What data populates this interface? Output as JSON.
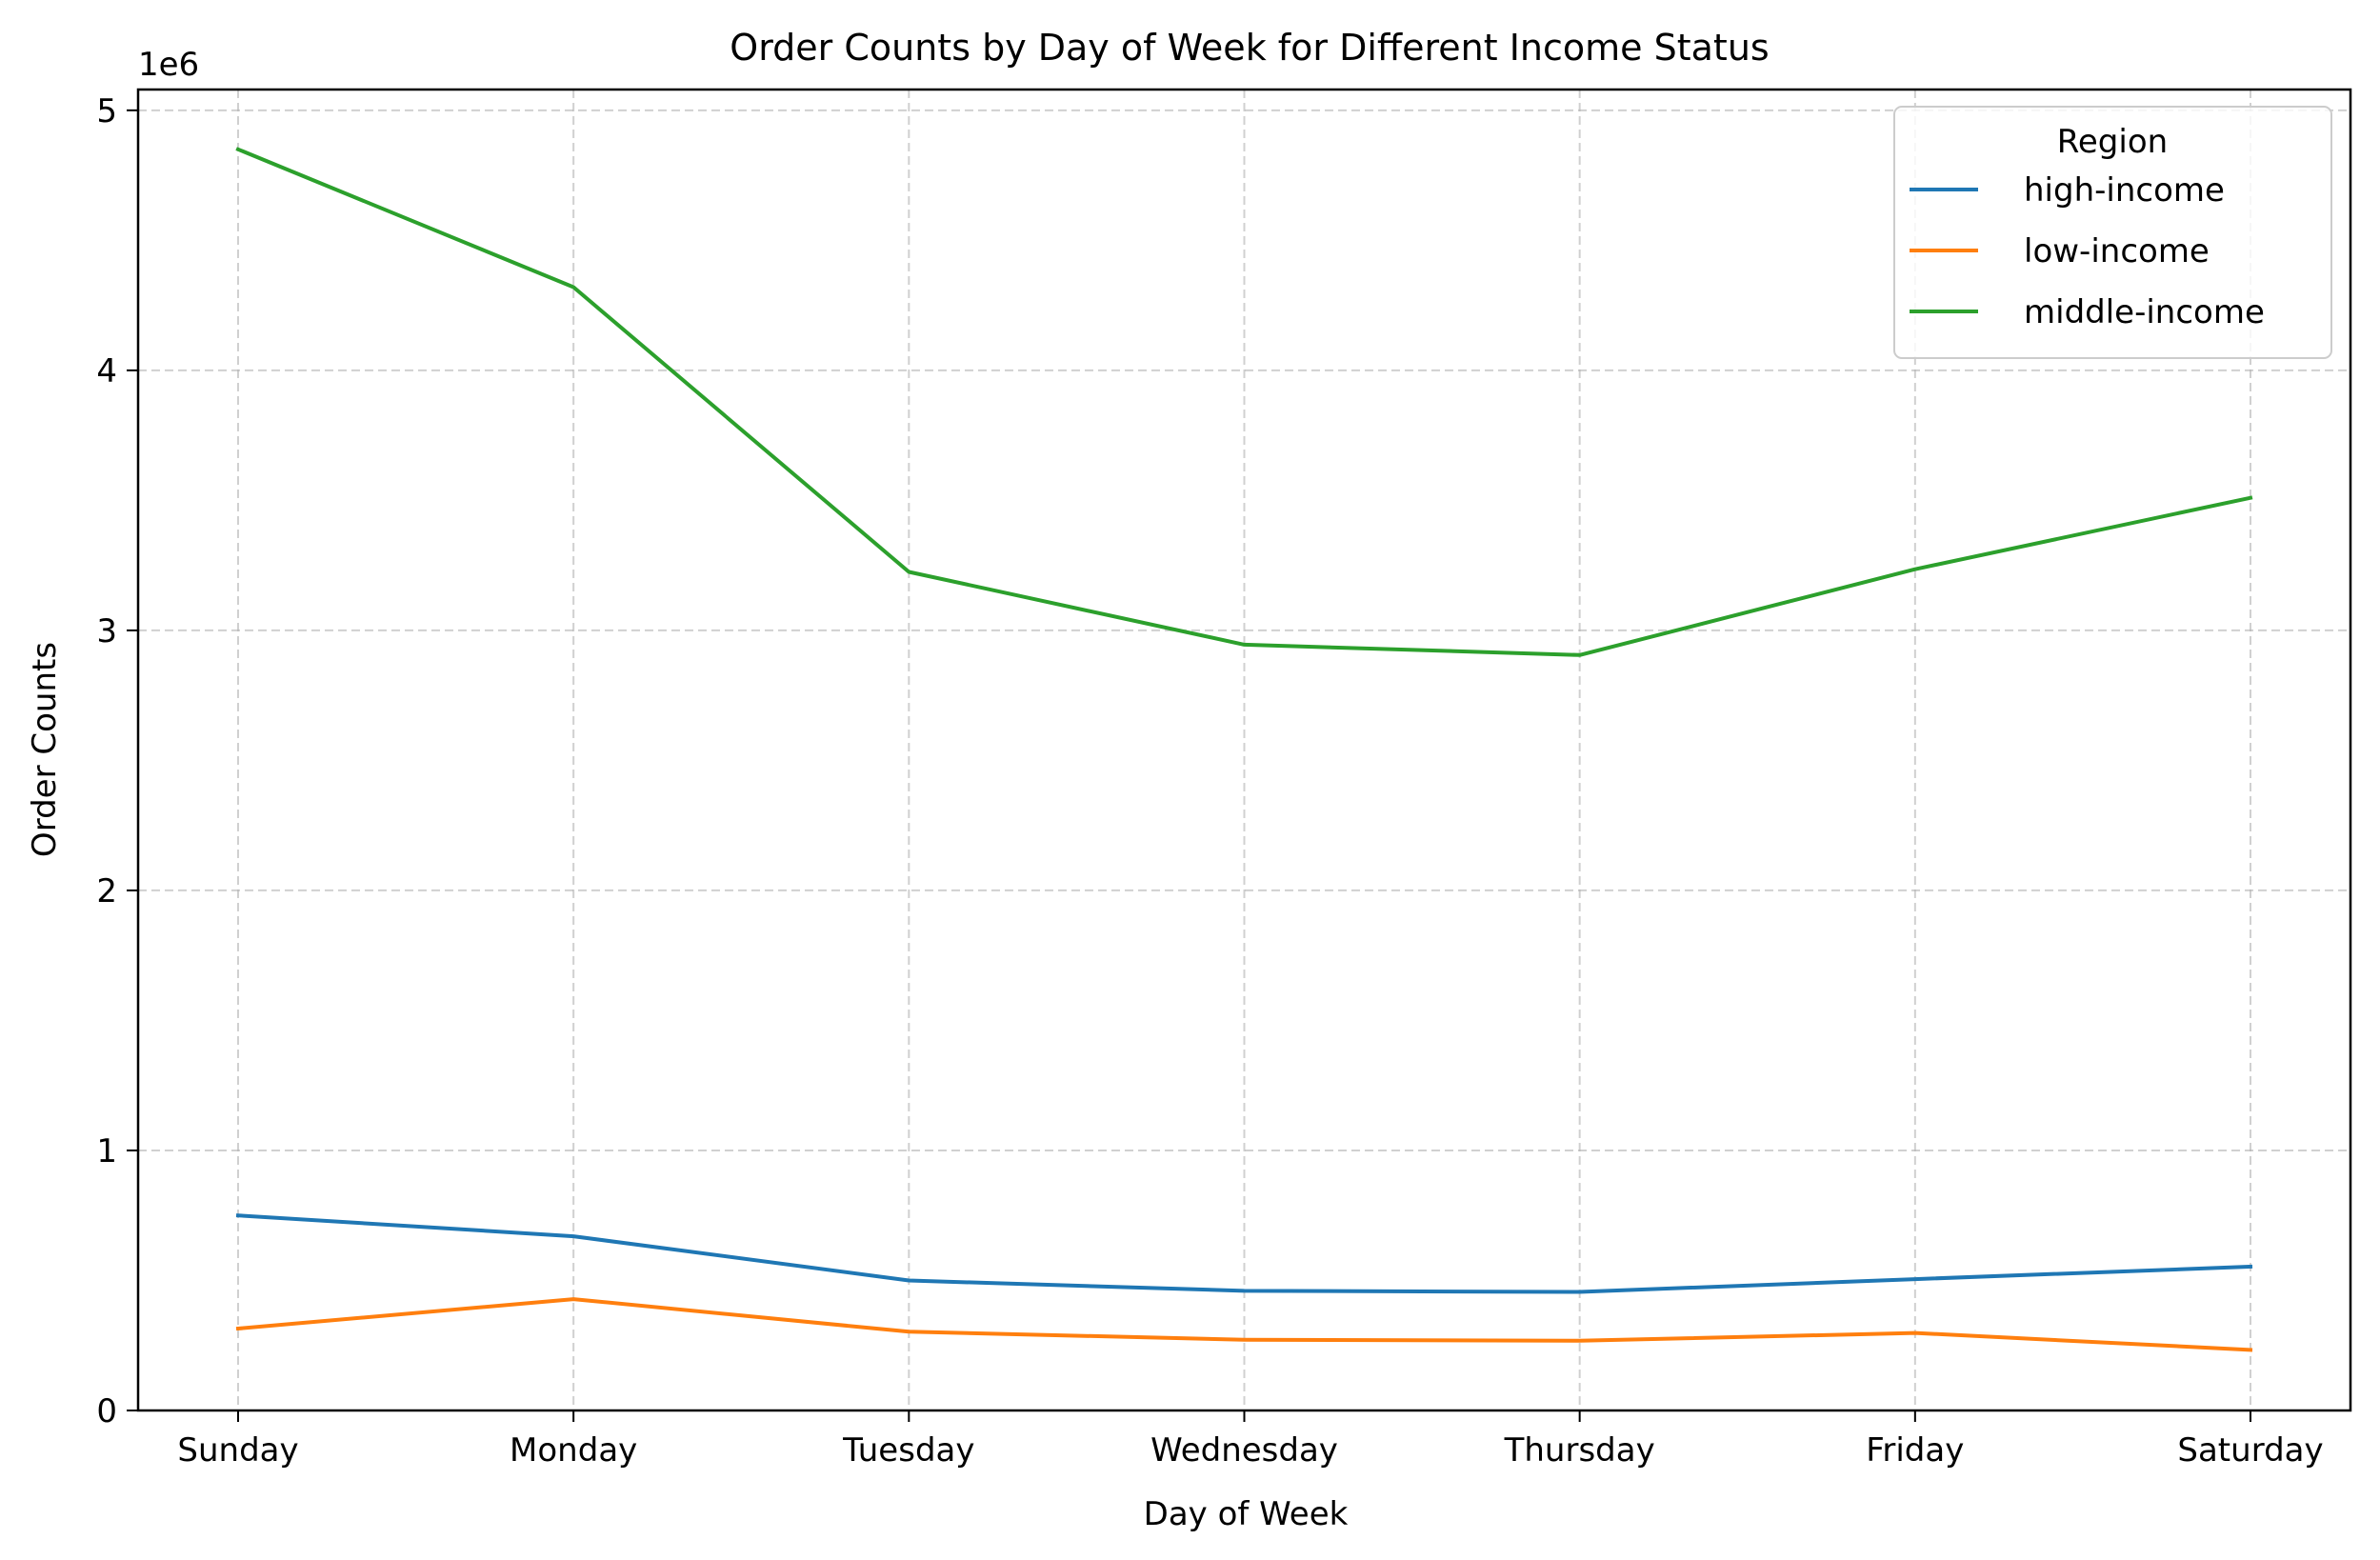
{
  "chart_data": {
    "type": "line",
    "title": "Order Counts by Day of Week for Different Income Status",
    "xlabel": "Day of Week",
    "ylabel": "Order Counts",
    "y_offset_label": "1e6",
    "categories": [
      "Sunday",
      "Monday",
      "Tuesday",
      "Wednesday",
      "Thursday",
      "Friday",
      "Saturday"
    ],
    "yticks": [
      0,
      1,
      2,
      3,
      4,
      5
    ],
    "ylim": [
      0,
      5.08
    ],
    "y_scale_factor": 1000000,
    "grid": true,
    "legend": {
      "title": "Region",
      "placement": "top-right"
    },
    "series": [
      {
        "name": "high-income",
        "color": "#1f77b4",
        "values": [
          750000,
          670000,
          500000,
          460000,
          456000,
          505000,
          553000
        ]
      },
      {
        "name": "low-income",
        "color": "#ff7f0e",
        "values": [
          315000,
          428000,
          303000,
          272000,
          268000,
          298000,
          233000
        ]
      },
      {
        "name": "middle-income",
        "color": "#2ca02c",
        "values": [
          4850000,
          4320000,
          3225000,
          2945000,
          2905000,
          3235000,
          3510000
        ]
      }
    ]
  }
}
